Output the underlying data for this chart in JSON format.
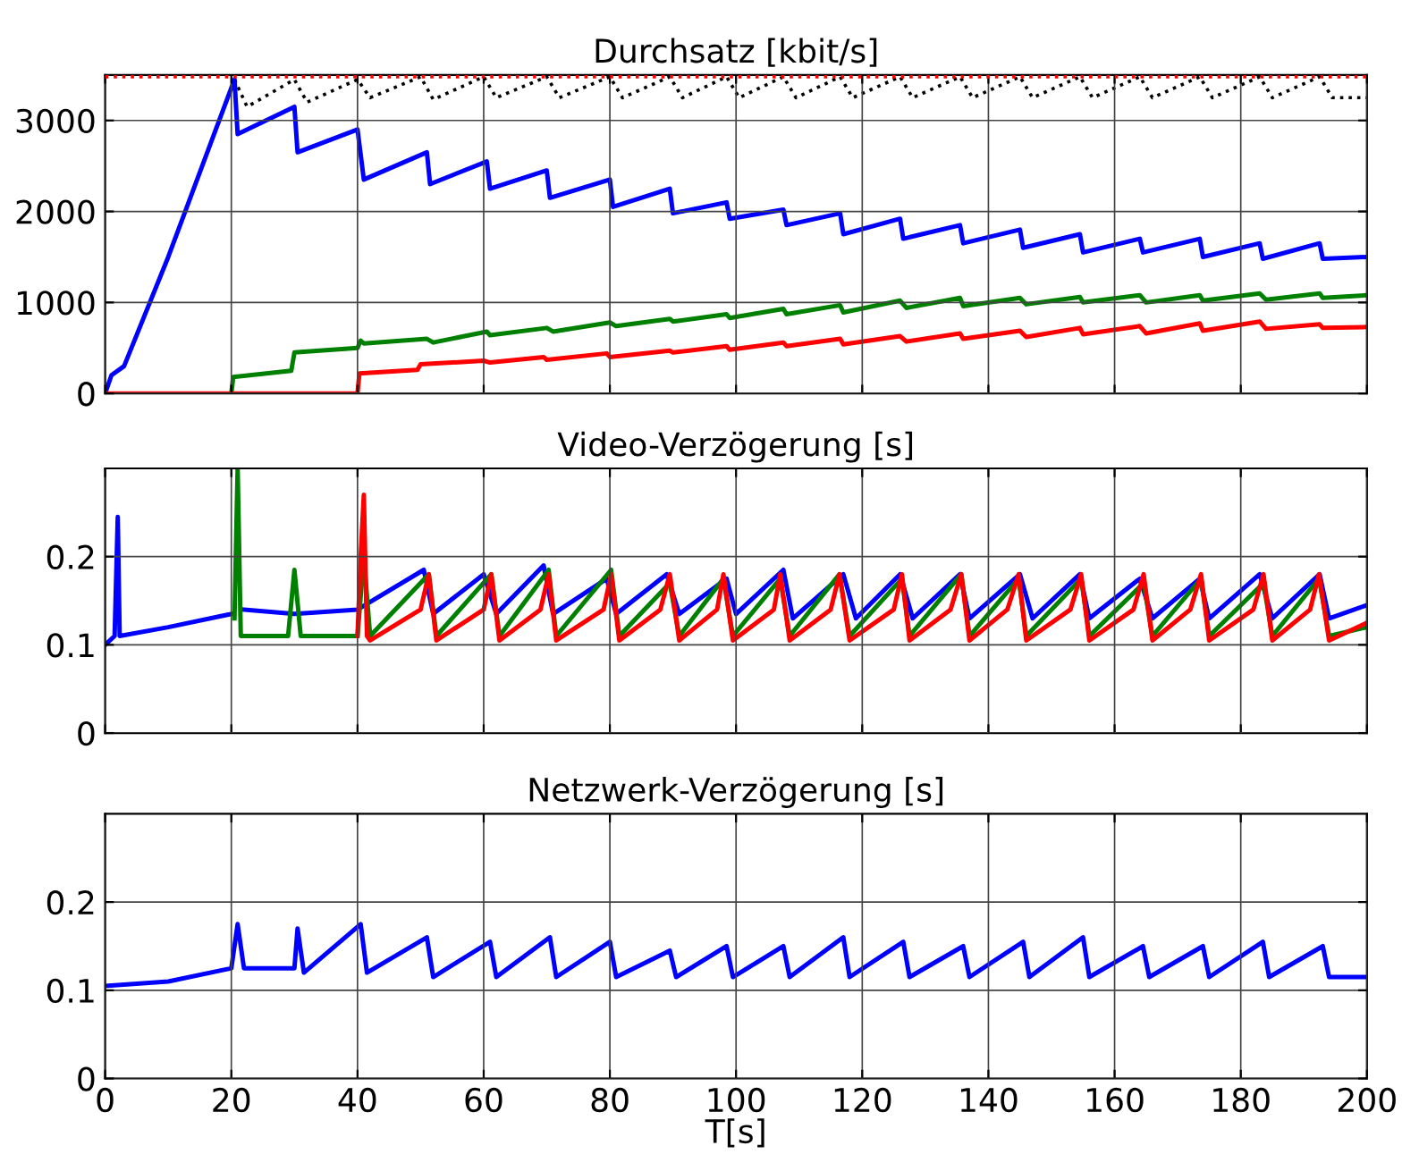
{
  "chart_data": [
    {
      "type": "line",
      "title": "Durchsatz [kbit/s]",
      "xlim": [
        0,
        200
      ],
      "xticks": [
        0,
        20,
        40,
        60,
        80,
        100,
        120,
        140,
        160,
        180,
        200
      ],
      "ylim": [
        0,
        3500
      ],
      "yticks": [
        0,
        1000,
        2000,
        3000
      ],
      "grid": true,
      "tick_labels": "y",
      "ref_lines": [
        {
          "axis": "y",
          "value": 3480,
          "color": "#ff0000",
          "line_style": "dotted"
        }
      ],
      "series": [
        {
          "color": "#000000",
          "line_style": "dotted",
          "x": [
            20.5,
            22.5,
            30,
            32,
            40,
            42,
            50,
            52,
            60,
            62,
            70,
            72,
            80,
            82,
            89.5,
            91.5,
            98.5,
            100.5,
            107.5,
            109.5,
            116.5,
            118.5,
            126,
            128,
            135.5,
            137.5,
            145,
            147,
            154.5,
            156.5,
            164,
            166,
            173.5,
            175.5,
            183,
            185,
            192.5,
            194.5,
            200
          ],
          "values": [
            3450,
            3150,
            3450,
            3200,
            3450,
            3250,
            3480,
            3230,
            3480,
            3250,
            3480,
            3250,
            3480,
            3250,
            3480,
            3250,
            3480,
            3250,
            3480,
            3250,
            3480,
            3250,
            3480,
            3250,
            3480,
            3250,
            3480,
            3250,
            3480,
            3250,
            3480,
            3250,
            3480,
            3250,
            3480,
            3250,
            3480,
            3250,
            3250
          ]
        },
        {
          "color": "#0000ff",
          "x": [
            0,
            1,
            3,
            10,
            20.5,
            21,
            30,
            30.5,
            40,
            41,
            51,
            51.5,
            60.5,
            61,
            70,
            70.5,
            80,
            80.5,
            89.5,
            90,
            98.5,
            99,
            107.5,
            108,
            116.5,
            117,
            126,
            126.5,
            135.5,
            136,
            145,
            145.5,
            154.5,
            155,
            164,
            164.5,
            173.5,
            174,
            183,
            183.5,
            192.5,
            193,
            200
          ],
          "values": [
            0,
            200,
            300,
            1500,
            3450,
            2850,
            3150,
            2650,
            2900,
            2350,
            2650,
            2300,
            2550,
            2250,
            2450,
            2150,
            2350,
            2050,
            2250,
            1980,
            2100,
            1920,
            2020,
            1850,
            1980,
            1750,
            1920,
            1700,
            1850,
            1650,
            1800,
            1600,
            1750,
            1550,
            1700,
            1550,
            1700,
            1500,
            1650,
            1480,
            1650,
            1480,
            1500
          ]
        },
        {
          "color": "#008000",
          "x": [
            20,
            20.3,
            29.5,
            30,
            40,
            40.5,
            41,
            51,
            52,
            60.5,
            61,
            70,
            71,
            80,
            81,
            89.5,
            90,
            98.5,
            99,
            107.5,
            108,
            116.5,
            117,
            126,
            127,
            135.5,
            136,
            145,
            146,
            154.5,
            155,
            164,
            165,
            173.5,
            174,
            183,
            184,
            192.5,
            193,
            200
          ],
          "values": [
            0,
            180,
            250,
            450,
            500,
            580,
            550,
            600,
            560,
            680,
            640,
            720,
            680,
            780,
            740,
            820,
            790,
            870,
            830,
            930,
            870,
            970,
            890,
            1020,
            940,
            1050,
            960,
            1050,
            980,
            1060,
            1000,
            1080,
            1000,
            1080,
            1020,
            1100,
            1030,
            1100,
            1050,
            1080
          ]
        },
        {
          "color": "#ff0000",
          "x": [
            0,
            40,
            40.3,
            49.5,
            50,
            60,
            61,
            69.5,
            70,
            79.5,
            80,
            89.5,
            90,
            98.5,
            99,
            107.5,
            108,
            116.5,
            117,
            126,
            127,
            135.5,
            136,
            145,
            146,
            154.5,
            155,
            164,
            165,
            173.5,
            174,
            183,
            184,
            192.5,
            193,
            200
          ],
          "values": [
            0,
            0,
            220,
            260,
            320,
            360,
            340,
            400,
            370,
            440,
            400,
            470,
            450,
            520,
            480,
            560,
            520,
            600,
            540,
            630,
            570,
            660,
            600,
            690,
            620,
            720,
            650,
            740,
            660,
            770,
            690,
            790,
            710,
            760,
            720,
            730
          ]
        }
      ]
    },
    {
      "type": "line",
      "title": "Video-Verzögerung [s]",
      "xlim": [
        0,
        200
      ],
      "xticks": [
        0,
        20,
        40,
        60,
        80,
        100,
        120,
        140,
        160,
        180,
        200
      ],
      "ylim": [
        0,
        0.3
      ],
      "yticks": [
        0,
        0.1,
        0.2
      ],
      "grid": true,
      "tick_labels": "y",
      "series": [
        {
          "color": "#0000ff",
          "x": [
            0,
            1.5,
            2,
            2.3,
            10,
            20,
            21,
            22,
            30,
            40,
            50.5,
            52,
            60,
            62,
            69.5,
            71,
            79.5,
            81,
            89,
            91,
            98.5,
            100,
            107.5,
            109,
            117,
            119,
            126,
            128,
            135.5,
            137,
            145,
            147,
            154.5,
            156,
            164,
            166,
            173.5,
            175,
            183,
            185,
            192.5,
            194,
            200
          ],
          "values": [
            0.1,
            0.11,
            0.245,
            0.11,
            0.12,
            0.135,
            null,
            0.14,
            0.135,
            0.14,
            0.185,
            0.135,
            0.18,
            0.135,
            0.19,
            0.135,
            0.175,
            0.135,
            0.18,
            0.135,
            0.175,
            0.135,
            0.185,
            0.13,
            0.18,
            0.13,
            0.18,
            0.13,
            0.18,
            0.13,
            0.18,
            0.13,
            0.18,
            0.13,
            0.175,
            0.13,
            0.175,
            0.13,
            0.18,
            0.13,
            0.18,
            0.13,
            0.145
          ]
        },
        {
          "color": "#008000",
          "x": [
            20.5,
            21,
            21.5,
            22,
            29,
            30,
            31,
            40,
            41,
            42,
            51.3,
            52.5,
            61.2,
            62.5,
            70.3,
            71.5,
            80.2,
            81.5,
            89.5,
            91,
            98,
            99.5,
            107,
            108.5,
            116.4,
            118,
            126.3,
            127.5,
            135.7,
            137,
            144.8,
            146,
            154.7,
            156,
            164.6,
            166,
            173.7,
            175,
            183.6,
            185,
            192.4,
            194,
            200
          ],
          "values": [
            0.13,
            0.3,
            0.11,
            0.11,
            0.11,
            0.185,
            0.11,
            0.11,
            0.2,
            0.11,
            0.18,
            0.11,
            0.18,
            0.11,
            0.185,
            0.11,
            0.185,
            0.11,
            0.17,
            0.11,
            0.175,
            0.11,
            0.175,
            0.11,
            0.18,
            0.11,
            0.175,
            0.11,
            0.18,
            0.11,
            0.175,
            0.11,
            0.175,
            0.11,
            0.17,
            0.11,
            0.175,
            0.11,
            0.17,
            0.11,
            0.175,
            0.11,
            0.12
          ]
        },
        {
          "color": "#ff0000",
          "x": [
            40,
            40.5,
            41,
            41.5,
            42,
            50,
            51.3,
            52.5,
            60,
            61.2,
            62.5,
            69,
            70.3,
            71.5,
            79,
            80.2,
            81.5,
            88,
            89.5,
            91,
            97,
            98,
            99.5,
            106,
            107,
            108.5,
            115,
            116.4,
            118,
            125,
            126.3,
            127.5,
            134,
            135.7,
            137,
            143,
            144.8,
            146,
            153,
            154.7,
            156,
            163,
            164.6,
            166,
            172,
            173.7,
            175,
            182,
            183.6,
            185,
            191,
            192.4,
            194,
            200
          ],
          "values": [
            0.11,
            0.2,
            0.27,
            0.11,
            0.105,
            0.14,
            0.18,
            0.105,
            0.14,
            0.18,
            0.105,
            0.14,
            0.18,
            0.105,
            0.14,
            0.18,
            0.105,
            0.14,
            0.18,
            0.105,
            0.14,
            0.18,
            0.105,
            0.14,
            0.18,
            0.105,
            0.14,
            0.18,
            0.105,
            0.14,
            0.18,
            0.105,
            0.14,
            0.18,
            0.105,
            0.14,
            0.18,
            0.105,
            0.14,
            0.18,
            0.105,
            0.14,
            0.18,
            0.105,
            0.14,
            0.18,
            0.105,
            0.14,
            0.18,
            0.105,
            0.14,
            0.18,
            0.105,
            0.125
          ]
        }
      ]
    },
    {
      "type": "line",
      "title": "Netzwerk-Verzögerung [s]",
      "xlabel": "T[s]",
      "xlim": [
        0,
        200
      ],
      "xticks": [
        0,
        20,
        40,
        60,
        80,
        100,
        120,
        140,
        160,
        180,
        200
      ],
      "ylim": [
        0,
        0.3
      ],
      "yticks": [
        0,
        0.1,
        0.2
      ],
      "grid": true,
      "series": [
        {
          "color": "#0000ff",
          "x": [
            0,
            10,
            20,
            21,
            22,
            30,
            30.5,
            31.5,
            40.5,
            41.5,
            51,
            52,
            61,
            62,
            70.5,
            71.5,
            80,
            81,
            89.5,
            90.5,
            98.5,
            99.5,
            107.5,
            108.5,
            117,
            118,
            126.5,
            127.5,
            136,
            137,
            145.5,
            146.5,
            155,
            156,
            164.5,
            165.5,
            174,
            175,
            183.5,
            184.5,
            193,
            194,
            200
          ],
          "values": [
            0.105,
            0.11,
            0.125,
            0.175,
            0.125,
            0.125,
            0.17,
            0.12,
            0.175,
            0.12,
            0.16,
            0.115,
            0.155,
            0.115,
            0.16,
            0.115,
            0.155,
            0.115,
            0.145,
            0.115,
            0.15,
            0.115,
            0.15,
            0.115,
            0.16,
            0.115,
            0.155,
            0.115,
            0.15,
            0.115,
            0.155,
            0.115,
            0.16,
            0.115,
            0.15,
            0.115,
            0.15,
            0.115,
            0.155,
            0.115,
            0.15,
            0.115,
            0.115
          ]
        }
      ]
    }
  ]
}
